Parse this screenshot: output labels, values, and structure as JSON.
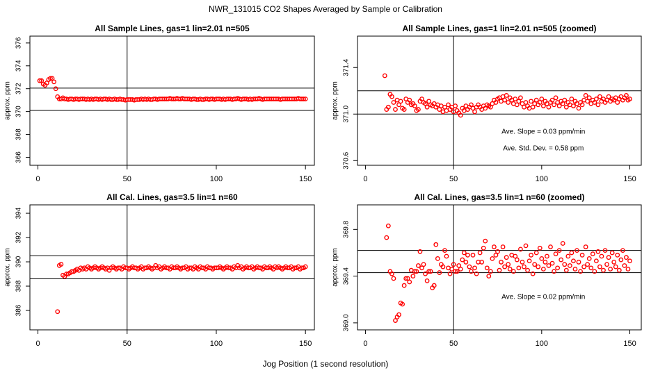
{
  "title": "NWR_131015  CO2 Shapes Averaged by Sample or Calibration",
  "xlabel": "Jog Position (1 second resolution)",
  "chart_data": [
    {
      "type": "scatter",
      "title": "All Sample Lines, gas=1 lin=2.01 n=505",
      "ylabel": "approx. ppm",
      "color": "#ff0000",
      "xlim": [
        -4.5,
        155
      ],
      "xticks": [
        0,
        50,
        100,
        150
      ],
      "ylim": [
        365.3,
        376.6
      ],
      "yticks": [
        366,
        368,
        370,
        372,
        374,
        376
      ],
      "hlines": [
        372.05,
        370.1
      ],
      "vline": 50,
      "x": [
        1,
        2,
        3,
        4,
        5,
        6,
        7,
        8,
        9,
        10,
        11,
        12,
        13,
        14,
        15,
        16,
        17,
        18,
        19,
        20,
        21,
        22,
        23,
        24,
        25,
        26,
        27,
        28,
        29,
        30,
        31,
        32,
        33,
        34,
        35,
        36,
        37,
        38,
        39,
        40,
        41,
        42,
        43,
        44,
        45,
        46,
        47,
        48,
        49,
        50,
        51,
        52,
        53,
        54,
        55,
        56,
        57,
        58,
        59,
        60,
        61,
        62,
        63,
        64,
        65,
        66,
        67,
        68,
        69,
        70,
        71,
        72,
        73,
        74,
        75,
        76,
        77,
        78,
        79,
        80,
        81,
        82,
        83,
        84,
        85,
        86,
        87,
        88,
        89,
        90,
        91,
        92,
        93,
        94,
        95,
        96,
        97,
        98,
        99,
        100,
        101,
        102,
        103,
        104,
        105,
        106,
        107,
        108,
        109,
        110,
        111,
        112,
        113,
        114,
        115,
        116,
        117,
        118,
        119,
        120,
        121,
        122,
        123,
        124,
        125,
        126,
        127,
        128,
        129,
        130,
        131,
        132,
        133,
        134,
        135,
        136,
        137,
        138,
        139,
        140,
        141,
        142,
        143,
        144,
        145,
        146,
        147,
        148,
        149,
        150
      ],
      "values": [
        372.7,
        372.7,
        372.4,
        372.3,
        372.5,
        372.8,
        372.9,
        372.9,
        372.6,
        372.0,
        371.3,
        371.1,
        371.1,
        371.2,
        371.1,
        371.1,
        371.05,
        371.1,
        371.1,
        371.05,
        371.1,
        371.1,
        371.05,
        371.1,
        371.1,
        371.1,
        371.05,
        371.1,
        371.05,
        371.1,
        371.05,
        371.1,
        371.1,
        371.05,
        371.1,
        371.05,
        371.1,
        371.1,
        371.05,
        371.1,
        371.05,
        371.05,
        371.1,
        371.05,
        371.05,
        371.1,
        371.05,
        371.05,
        371,
        371.05,
        371.05,
        371.05,
        371.05,
        371,
        371.05,
        371.05,
        371.05,
        371.1,
        371.05,
        371.1,
        371.05,
        371.1,
        371.05,
        371.05,
        371.1,
        371.1,
        371.05,
        371.1,
        371.1,
        371.1,
        371.1,
        371.1,
        371.1,
        371.15,
        371.1,
        371.1,
        371.1,
        371.15,
        371.1,
        371.1,
        371.15,
        371.1,
        371.1,
        371.1,
        371.1,
        371.05,
        371.1,
        371.1,
        371.05,
        371.05,
        371.1,
        371.05,
        371.05,
        371.1,
        371.1,
        371.05,
        371.1,
        371.1,
        371.05,
        371.1,
        371.1,
        371.1,
        371.05,
        371.1,
        371.05,
        371.1,
        371.1,
        371.1,
        371.05,
        371.1,
        371.1,
        371.15,
        371.1,
        371.05,
        371.1,
        371.1,
        371.1,
        371.05,
        371.1,
        371.05,
        371.1,
        371.1,
        371.1,
        371.15,
        371.1,
        371.05,
        371.1,
        371.1,
        371.1,
        371.1,
        371.1,
        371.1,
        371.1,
        371.1,
        371.1,
        371.05,
        371.1,
        371.1,
        371.1,
        371.1,
        371.1,
        371.1,
        371.1,
        371.1,
        371.1,
        371.15,
        371.1,
        371.1,
        371.1,
        371.1
      ]
    },
    {
      "type": "scatter",
      "title": "All Sample Lines, gas=1 lin=2.01 n=505 (zoomed)",
      "ylabel": "approx. ppm",
      "color": "#ff0000",
      "xlim": [
        -4.5,
        156.5
      ],
      "xticks": [
        0,
        50,
        100,
        150
      ],
      "ylim": [
        370.56,
        371.67
      ],
      "yticks": [
        370.6,
        {
          "value": 371,
          "label": "371.0"
        },
        371.4
      ],
      "hlines": [
        371.2,
        371.0
      ],
      "vline": 50,
      "annotations": [
        "Ave. Slope =  0.03  ppm/min",
        "Ave. Std. Dev. =  0.58  ppm"
      ],
      "x": [
        11,
        12,
        13,
        14,
        15,
        16,
        17,
        18,
        19,
        20,
        21,
        22,
        23,
        24,
        25,
        26,
        27,
        28,
        29,
        30,
        31,
        32,
        33,
        34,
        35,
        36,
        37,
        38,
        39,
        40,
        41,
        42,
        43,
        44,
        45,
        46,
        47,
        48,
        49,
        50,
        51,
        52,
        53,
        54,
        55,
        56,
        57,
        58,
        59,
        60,
        61,
        62,
        63,
        64,
        65,
        66,
        67,
        68,
        69,
        70,
        71,
        72,
        73,
        74,
        75,
        76,
        77,
        78,
        79,
        80,
        81,
        82,
        83,
        84,
        85,
        86,
        87,
        88,
        89,
        90,
        91,
        92,
        93,
        94,
        95,
        96,
        97,
        98,
        99,
        100,
        101,
        102,
        103,
        104,
        105,
        106,
        107,
        108,
        109,
        110,
        111,
        112,
        113,
        114,
        115,
        116,
        117,
        118,
        119,
        120,
        121,
        122,
        123,
        124,
        125,
        126,
        127,
        128,
        129,
        130,
        131,
        132,
        133,
        134,
        135,
        136,
        137,
        138,
        139,
        140,
        141,
        142,
        143,
        144,
        145,
        146,
        147,
        148,
        149,
        150
      ],
      "values": [
        371.33,
        371.04,
        371.06,
        371.17,
        371.15,
        371.1,
        371.04,
        371.12,
        371.08,
        371.11,
        371.05,
        371.04,
        371.13,
        371.1,
        371.12,
        371.08,
        371.09,
        371.07,
        371.03,
        371.04,
        371.11,
        371.13,
        371.1,
        371.09,
        371.06,
        371.11,
        371.08,
        371.07,
        371.09,
        371.06,
        371.08,
        371.04,
        371.07,
        371.02,
        371.06,
        371.03,
        371.08,
        371.04,
        371.06,
        371.02,
        371.07,
        371.03,
        371.01,
        370.99,
        371.05,
        371.03,
        371.07,
        371.04,
        371.06,
        371.08,
        371.05,
        371.02,
        371.06,
        371.08,
        371.06,
        371.04,
        371.07,
        371.05,
        371.08,
        371.07,
        371.06,
        371.09,
        371.12,
        371.1,
        371.13,
        371.14,
        371.11,
        371.15,
        371.12,
        371.16,
        371.1,
        371.14,
        371.12,
        371.09,
        371.13,
        371.08,
        371.11,
        371.14,
        371.09,
        371.06,
        371.1,
        371.07,
        371.05,
        371.11,
        371.06,
        371.09,
        371.12,
        371.08,
        371.1,
        371.13,
        371.07,
        371.11,
        371.09,
        371.06,
        371.1,
        371.12,
        371.08,
        371.14,
        371.1,
        371.07,
        371.11,
        371.09,
        371.12,
        371.06,
        371.1,
        371.08,
        371.13,
        371.07,
        371.11,
        371.09,
        371.05,
        371.1,
        371.08,
        371.12,
        371.16,
        371.11,
        371.14,
        371.09,
        371.12,
        371.1,
        371.13,
        371.08,
        371.15,
        371.11,
        371.13,
        371.1,
        371.12,
        371.15,
        371.11,
        371.13,
        371.12,
        371.14,
        371.1,
        371.13,
        371.15,
        371.12,
        371.14,
        371.16,
        371.12,
        371.13
      ]
    },
    {
      "type": "scatter",
      "title": "All Cal. Lines, gas=3.5 lin=1 n=60",
      "ylabel": "approx. ppm",
      "color": "#ff0000",
      "xlim": [
        -4.5,
        155
      ],
      "xticks": [
        0,
        50,
        100,
        150
      ],
      "ylim": [
        384.4,
        394.69
      ],
      "yticks": [
        386,
        388,
        390,
        392,
        394
      ],
      "hlines": [
        390.5,
        388.6
      ],
      "vline": 50,
      "x": [
        11,
        12,
        13,
        14,
        15,
        16,
        17,
        18,
        19,
        20,
        21,
        22,
        23,
        24,
        25,
        26,
        27,
        28,
        29,
        30,
        31,
        32,
        33,
        34,
        35,
        36,
        37,
        38,
        39,
        40,
        41,
        42,
        43,
        44,
        45,
        46,
        47,
        48,
        49,
        50,
        51,
        52,
        53,
        54,
        55,
        56,
        57,
        58,
        59,
        60,
        61,
        62,
        63,
        64,
        65,
        66,
        67,
        68,
        69,
        70,
        71,
        72,
        73,
        74,
        75,
        76,
        77,
        78,
        79,
        80,
        81,
        82,
        83,
        84,
        85,
        86,
        87,
        88,
        89,
        90,
        91,
        92,
        93,
        94,
        95,
        96,
        97,
        98,
        99,
        100,
        101,
        102,
        103,
        104,
        105,
        106,
        107,
        108,
        109,
        110,
        111,
        112,
        113,
        114,
        115,
        116,
        117,
        118,
        119,
        120,
        121,
        122,
        123,
        124,
        125,
        126,
        127,
        128,
        129,
        130,
        131,
        132,
        133,
        134,
        135,
        136,
        137,
        138,
        139,
        140,
        141,
        142,
        143,
        144,
        145,
        146,
        147,
        148,
        149,
        150
      ],
      "values": [
        385.9,
        389.7,
        389.8,
        388.9,
        388.8,
        389.0,
        389.0,
        389.1,
        389.2,
        389.2,
        389.3,
        389.4,
        389.3,
        389.5,
        389.4,
        389.5,
        389.4,
        389.6,
        389.5,
        389.4,
        389.5,
        389.6,
        389.5,
        389.4,
        389.5,
        389.6,
        389.5,
        389.4,
        389.5,
        389.3,
        389.5,
        389.6,
        389.5,
        389.4,
        389.5,
        389.5,
        389.4,
        389.6,
        389.5,
        389.5,
        389.4,
        389.5,
        389.6,
        389.5,
        389.5,
        389.4,
        389.5,
        389.6,
        389.4,
        389.5,
        389.5,
        389.6,
        389.5,
        389.4,
        389.5,
        389.7,
        389.5,
        389.6,
        389.4,
        389.5,
        389.6,
        389.5,
        389.5,
        389.4,
        389.6,
        389.5,
        389.5,
        389.6,
        389.5,
        389.4,
        389.5,
        389.5,
        389.6,
        389.4,
        389.5,
        389.5,
        389.4,
        389.6,
        389.5,
        389.4,
        389.6,
        389.5,
        389.5,
        389.4,
        389.6,
        389.5,
        389.5,
        389.4,
        389.5,
        389.5,
        389.5,
        389.6,
        389.5,
        389.4,
        389.5,
        389.6,
        389.5,
        389.5,
        389.4,
        389.6,
        389.5,
        389.7,
        389.5,
        389.6,
        389.4,
        389.5,
        389.6,
        389.5,
        389.5,
        389.6,
        389.4,
        389.5,
        389.6,
        389.5,
        389.5,
        389.4,
        389.6,
        389.5,
        389.5,
        389.6,
        389.5,
        389.4,
        389.6,
        389.5,
        389.6,
        389.5,
        389.4,
        389.5,
        389.6,
        389.5,
        389.5,
        389.6,
        389.4,
        389.5,
        389.5,
        389.6,
        389.4,
        389.5,
        389.5,
        389.6
      ]
    },
    {
      "type": "scatter",
      "title": "All Cal. Lines, gas=3.5 lin=1 n=60 (zoomed)",
      "ylabel": "approx. ppm",
      "color": "#ff0000",
      "xlim": [
        -4.5,
        156.5
      ],
      "xticks": [
        0,
        50,
        100,
        150
      ],
      "ylim": [
        368.94,
        370.01
      ],
      "yticks": [
        {
          "value": 369,
          "label": "369.0"
        },
        369.4,
        369.8
      ],
      "hlines": [
        369.62,
        369.43
      ],
      "vline": 50,
      "annotations": [
        "Ave. Slope =  0.02  ppm/min"
      ],
      "x": [
        12,
        13,
        14,
        15,
        16,
        17,
        18,
        19,
        20,
        21,
        22,
        23,
        24,
        25,
        26,
        27,
        28,
        29,
        30,
        31,
        32,
        33,
        34,
        35,
        36,
        37,
        38,
        39,
        40,
        41,
        42,
        43,
        44,
        45,
        46,
        47,
        48,
        49,
        50,
        51,
        52,
        53,
        54,
        55,
        56,
        57,
        58,
        59,
        60,
        61,
        62,
        63,
        64,
        65,
        66,
        67,
        68,
        69,
        70,
        71,
        72,
        73,
        74,
        75,
        76,
        77,
        78,
        79,
        80,
        81,
        82,
        83,
        84,
        85,
        86,
        87,
        88,
        89,
        90,
        91,
        92,
        93,
        94,
        95,
        96,
        97,
        98,
        99,
        100,
        101,
        102,
        103,
        104,
        105,
        106,
        107,
        108,
        109,
        110,
        111,
        112,
        113,
        114,
        115,
        116,
        117,
        118,
        119,
        120,
        121,
        122,
        123,
        124,
        125,
        126,
        127,
        128,
        129,
        130,
        131,
        132,
        133,
        134,
        135,
        136,
        137,
        138,
        139,
        140,
        141,
        142,
        143,
        144,
        145,
        146,
        147,
        148,
        149,
        150
      ],
      "values": [
        369.73,
        369.83,
        369.44,
        369.42,
        369.38,
        369.02,
        369.05,
        369.07,
        369.17,
        369.16,
        369.32,
        369.38,
        369.38,
        369.35,
        369.45,
        369.4,
        369.44,
        369.44,
        369.49,
        369.61,
        369.47,
        369.5,
        369.42,
        369.36,
        369.44,
        369.44,
        369.3,
        369.32,
        369.67,
        369.55,
        369.43,
        369.5,
        369.48,
        369.62,
        369.57,
        369.47,
        369.42,
        369.46,
        369.5,
        369.44,
        369.44,
        369.49,
        369.46,
        369.54,
        369.6,
        369.52,
        369.58,
        369.48,
        369.44,
        369.58,
        369.47,
        369.42,
        369.52,
        369.6,
        369.52,
        369.64,
        369.7,
        369.47,
        369.4,
        369.44,
        369.55,
        369.65,
        369.58,
        369.61,
        369.45,
        369.52,
        369.65,
        369.48,
        369.56,
        369.5,
        369.46,
        369.58,
        369.44,
        369.57,
        369.54,
        369.47,
        369.63,
        369.52,
        369.48,
        369.66,
        369.45,
        369.53,
        369.58,
        369.42,
        369.5,
        369.6,
        369.48,
        369.64,
        369.55,
        369.46,
        369.52,
        369.57,
        369.49,
        369.65,
        369.51,
        369.44,
        369.59,
        369.47,
        369.62,
        369.54,
        369.68,
        369.5,
        369.45,
        369.57,
        369.49,
        369.6,
        369.53,
        369.46,
        369.62,
        369.52,
        369.44,
        369.58,
        369.48,
        369.65,
        369.5,
        369.55,
        369.47,
        369.59,
        369.44,
        369.53,
        369.61,
        369.48,
        369.57,
        369.45,
        369.62,
        369.5,
        369.56,
        369.46,
        369.6,
        369.52,
        369.48,
        369.58,
        369.45,
        369.54,
        369.62,
        369.49,
        369.56,
        369.46,
        369.53
      ]
    }
  ]
}
